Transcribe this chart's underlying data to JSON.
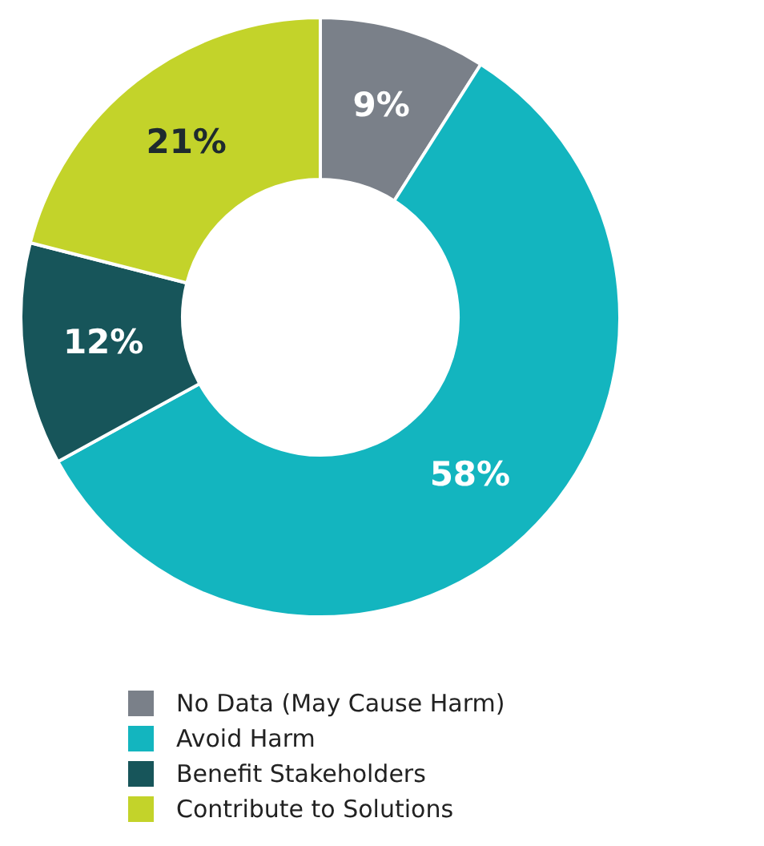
{
  "chart_data": {
    "type": "donut",
    "categories": [
      "No Data (May Cause Harm)",
      "Avoid Harm",
      "Benefit Stakeholders",
      "Contribute to Solutions"
    ],
    "values": [
      9,
      58,
      12,
      21
    ],
    "value_labels": [
      "9%",
      "58%",
      "12%",
      "21%"
    ],
    "colors": [
      "#7a8089",
      "#13b5bf",
      "#17555a",
      "#c3d32a"
    ],
    "legend": "bottom"
  }
}
